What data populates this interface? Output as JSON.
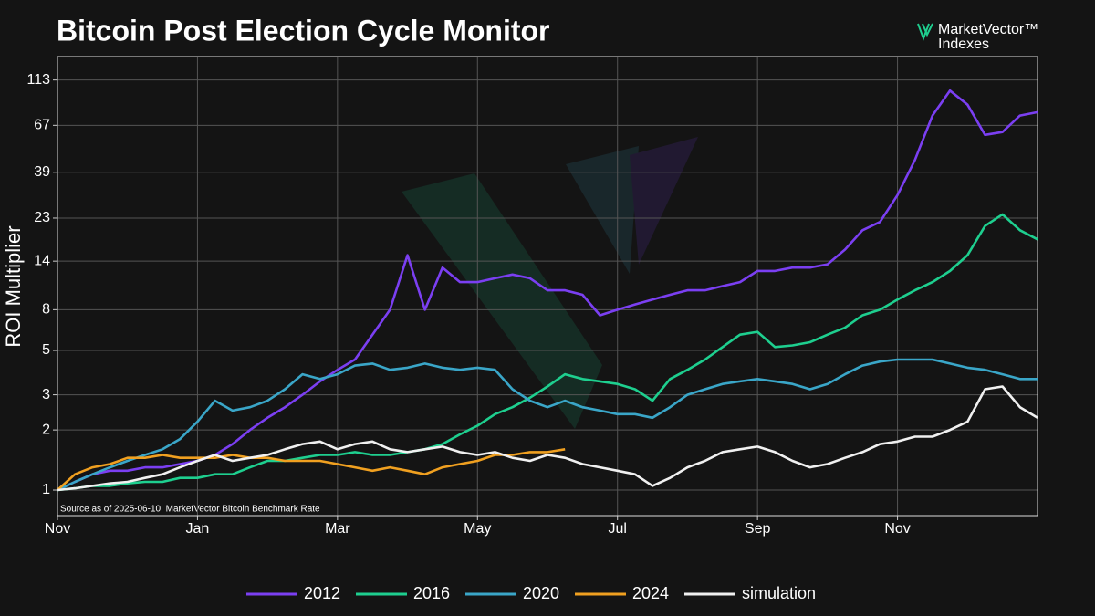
{
  "chart_data": {
    "type": "line",
    "title": "Bitcoin Post Election Cycle Monitor",
    "logo": [
      "MarketVector™",
      "Indexes"
    ],
    "source": "Source as of 2025-06-10: MarketVector Bitcoin Benchmark Rate",
    "y_label": "ROI Multiplier",
    "log_y": true,
    "grid": true,
    "legend": "bottom",
    "ylim": [
      0.745,
      148
    ],
    "yticks": [
      1,
      2,
      3,
      5,
      8,
      14,
      23,
      39,
      67,
      113
    ],
    "categories": [
      "Nov",
      null,
      null,
      null,
      null,
      null,
      null,
      null,
      "Jan",
      null,
      null,
      null,
      null,
      null,
      null,
      null,
      "Mar",
      null,
      null,
      null,
      null,
      null,
      null,
      null,
      "May",
      null,
      null,
      null,
      null,
      null,
      null,
      null,
      "Jul",
      null,
      null,
      null,
      null,
      null,
      null,
      null,
      "Sep",
      null,
      null,
      null,
      null,
      null,
      null,
      null,
      "Nov",
      null,
      null,
      null,
      null,
      null,
      null,
      null,
      null
    ],
    "series": [
      {
        "name": "2012",
        "color": "#7b3ff2",
        "values": [
          1,
          1.1,
          1.2,
          1.25,
          1.25,
          1.3,
          1.3,
          1.35,
          1.4,
          1.5,
          1.7,
          2,
          2.3,
          2.6,
          3,
          3.5,
          4,
          4.5,
          6,
          8,
          15,
          8,
          13,
          11,
          11,
          11.5,
          12,
          11.5,
          10,
          10,
          9.5,
          7.5,
          8,
          8.5,
          9,
          9.5,
          10,
          10,
          10.5,
          11,
          12.5,
          12.5,
          13,
          13,
          13.5,
          16,
          20,
          22,
          30,
          45,
          75,
          100,
          85,
          60,
          62,
          75,
          78
        ]
      },
      {
        "name": "2016",
        "color": "#1ecf8f",
        "values": [
          1,
          1.02,
          1.05,
          1.05,
          1.08,
          1.1,
          1.1,
          1.15,
          1.15,
          1.2,
          1.2,
          1.3,
          1.4,
          1.4,
          1.45,
          1.5,
          1.5,
          1.55,
          1.5,
          1.5,
          1.55,
          1.6,
          1.7,
          1.9,
          2.1,
          2.4,
          2.6,
          2.9,
          3.3,
          3.8,
          3.6,
          3.5,
          3.4,
          3.2,
          2.8,
          3.6,
          4,
          4.5,
          5.2,
          6,
          6.2,
          5.2,
          5.3,
          5.5,
          6,
          6.5,
          7.5,
          8,
          9,
          10,
          11,
          12.5,
          15,
          21,
          24,
          20,
          18
        ]
      },
      {
        "name": "2020",
        "color": "#3aa6c8",
        "values": [
          1,
          1.1,
          1.2,
          1.3,
          1.4,
          1.5,
          1.6,
          1.8,
          2.2,
          2.8,
          2.5,
          2.6,
          2.8,
          3.2,
          3.8,
          3.6,
          3.8,
          4.2,
          4.3,
          4,
          4.1,
          4.3,
          4.1,
          4,
          4.1,
          4,
          3.2,
          2.8,
          2.6,
          2.8,
          2.6,
          2.5,
          2.4,
          2.4,
          2.3,
          2.6,
          3,
          3.2,
          3.4,
          3.5,
          3.6,
          3.5,
          3.4,
          3.2,
          3.4,
          3.8,
          4.2,
          4.4,
          4.5,
          4.5,
          4.5,
          4.3,
          4.1,
          4,
          3.8,
          3.6,
          3.6
        ]
      },
      {
        "name": "2024",
        "color": "#f0a020",
        "values": [
          1,
          1.2,
          1.3,
          1.35,
          1.45,
          1.45,
          1.5,
          1.45,
          1.45,
          1.45,
          1.5,
          1.45,
          1.45,
          1.4,
          1.4,
          1.4,
          1.35,
          1.3,
          1.25,
          1.3,
          1.25,
          1.2,
          1.3,
          1.35,
          1.4,
          1.5,
          1.5,
          1.55,
          1.55,
          1.6,
          null,
          null,
          null,
          null,
          null,
          null,
          null,
          null,
          null,
          null,
          null,
          null,
          null,
          null,
          null,
          null,
          null,
          null,
          null,
          null,
          null,
          null,
          null,
          null,
          null,
          null,
          null
        ]
      },
      {
        "name": "simulation",
        "color": "#f0f0f0",
        "values": [
          1,
          1.02,
          1.05,
          1.08,
          1.1,
          1.15,
          1.2,
          1.3,
          1.4,
          1.5,
          1.4,
          1.45,
          1.5,
          1.6,
          1.7,
          1.75,
          1.6,
          1.7,
          1.75,
          1.6,
          1.55,
          1.6,
          1.65,
          1.55,
          1.5,
          1.55,
          1.45,
          1.4,
          1.5,
          1.45,
          1.35,
          1.3,
          1.25,
          1.2,
          1.05,
          1.15,
          1.3,
          1.4,
          1.55,
          1.6,
          1.65,
          1.55,
          1.4,
          1.3,
          1.35,
          1.45,
          1.55,
          1.7,
          1.75,
          1.85,
          1.85,
          2,
          2.2,
          3.2,
          3.3,
          2.6,
          2.3
        ]
      }
    ]
  }
}
